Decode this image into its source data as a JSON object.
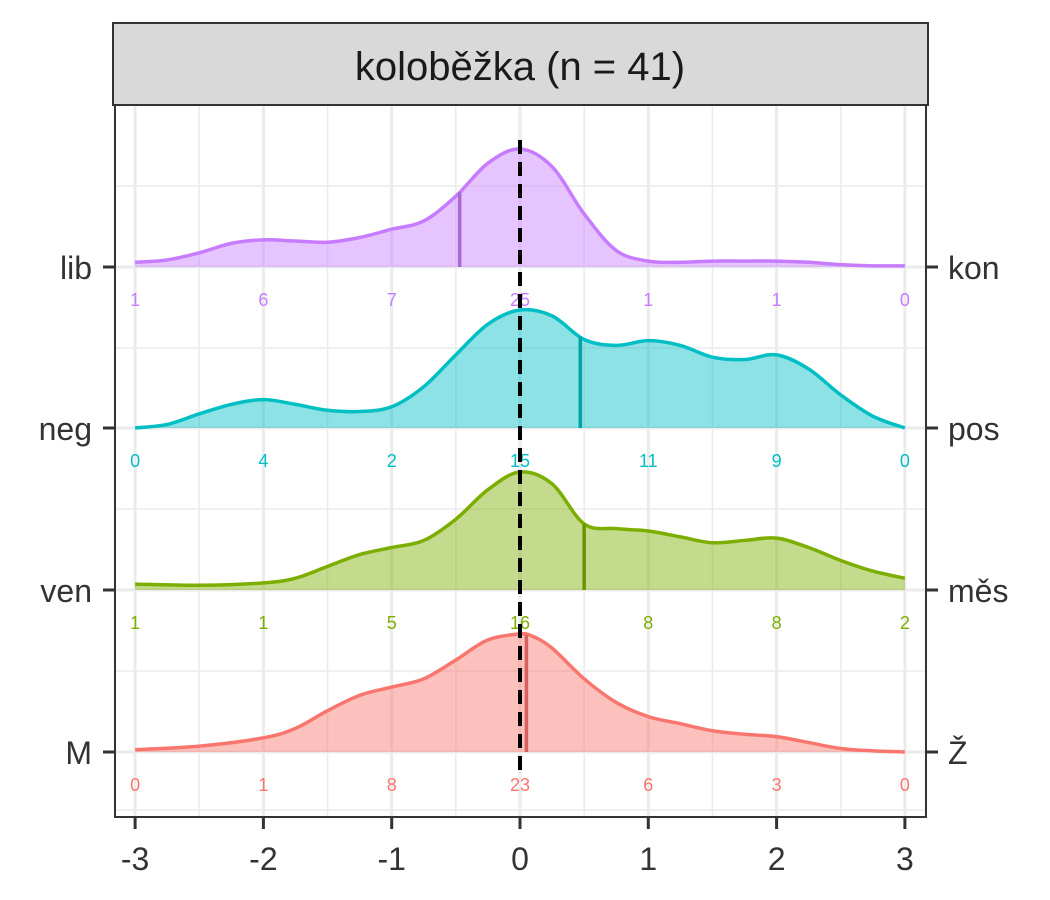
{
  "chart_data": {
    "type": "ridgeline",
    "title": "koloběžka (n = 41)",
    "xlim": [
      -3,
      3
    ],
    "x_ticks": [
      "-3",
      "-2",
      "-1",
      "0",
      "1",
      "2",
      "3"
    ],
    "x_tick_values": [
      -3,
      -2,
      -1,
      0,
      1,
      2,
      3
    ],
    "reference_line_x": 0,
    "grid": true,
    "series": [
      {
        "left_label": "M",
        "right_label": "Ž",
        "color": "#F8766D",
        "mean": 0.05,
        "x": [
          -3,
          -2.5,
          -2,
          -1.75,
          -1.5,
          -1.25,
          -1,
          -0.75,
          -0.5,
          -0.25,
          0,
          0.1,
          0.25,
          0.5,
          0.75,
          1,
          1.25,
          1.5,
          1.75,
          2,
          2.25,
          2.5,
          2.75,
          3
        ],
        "density": [
          0.02,
          0.05,
          0.12,
          0.2,
          0.35,
          0.48,
          0.55,
          0.62,
          0.78,
          0.95,
          1,
          0.98,
          0.88,
          0.62,
          0.42,
          0.3,
          0.24,
          0.18,
          0.15,
          0.13,
          0.08,
          0.03,
          0.01,
          0
        ],
        "counts": [
          {
            "x": -3,
            "label": "0"
          },
          {
            "x": -2,
            "label": "1"
          },
          {
            "x": -1,
            "label": "8"
          },
          {
            "x": 0,
            "label": "23"
          },
          {
            "x": 1,
            "label": "6"
          },
          {
            "x": 2,
            "label": "3"
          },
          {
            "x": 3,
            "label": "0"
          }
        ]
      },
      {
        "left_label": "ven",
        "right_label": "měs",
        "color": "#7CAE00",
        "mean": 0.5,
        "x": [
          -3,
          -2.5,
          -2,
          -1.75,
          -1.5,
          -1.25,
          -1,
          -0.75,
          -0.5,
          -0.25,
          0,
          0.25,
          0.5,
          0.75,
          1,
          1.25,
          1.5,
          1.75,
          2,
          2.25,
          2.5,
          2.75,
          3
        ],
        "density": [
          0.05,
          0.04,
          0.06,
          0.1,
          0.2,
          0.3,
          0.36,
          0.42,
          0.6,
          0.85,
          1,
          0.9,
          0.56,
          0.52,
          0.5,
          0.45,
          0.4,
          0.42,
          0.44,
          0.36,
          0.25,
          0.16,
          0.1
        ],
        "counts": [
          {
            "x": -3,
            "label": "1"
          },
          {
            "x": -2,
            "label": "1"
          },
          {
            "x": -1,
            "label": "5"
          },
          {
            "x": 0,
            "label": "16"
          },
          {
            "x": 1,
            "label": "8"
          },
          {
            "x": 2,
            "label": "8"
          },
          {
            "x": 3,
            "label": "2"
          }
        ]
      },
      {
        "left_label": "neg",
        "right_label": "pos",
        "color": "#00BFC4",
        "mean": 0.47,
        "x": [
          -3,
          -2.75,
          -2.5,
          -2.25,
          -2,
          -1.75,
          -1.5,
          -1.25,
          -1,
          -0.75,
          -0.5,
          -0.25,
          0,
          0.25,
          0.5,
          0.75,
          1,
          1.25,
          1.5,
          1.75,
          2,
          2.25,
          2.5,
          2.75,
          3
        ],
        "density": [
          0,
          0.03,
          0.12,
          0.2,
          0.24,
          0.2,
          0.15,
          0.14,
          0.18,
          0.35,
          0.62,
          0.88,
          1,
          0.95,
          0.75,
          0.7,
          0.74,
          0.7,
          0.6,
          0.58,
          0.62,
          0.5,
          0.28,
          0.1,
          0
        ],
        "counts": [
          {
            "x": -3,
            "label": "0"
          },
          {
            "x": -2,
            "label": "4"
          },
          {
            "x": -1,
            "label": "2"
          },
          {
            "x": 0,
            "label": "15"
          },
          {
            "x": 1,
            "label": "11"
          },
          {
            "x": 2,
            "label": "9"
          },
          {
            "x": 3,
            "label": "0"
          }
        ]
      },
      {
        "left_label": "lib",
        "right_label": "kon",
        "color": "#C77CFF",
        "mean": -0.47,
        "x": [
          -3,
          -2.75,
          -2.5,
          -2.25,
          -2,
          -1.75,
          -1.5,
          -1.25,
          -1,
          -0.75,
          -0.5,
          -0.25,
          0,
          0.25,
          0.5,
          0.75,
          1,
          1.25,
          1.5,
          1.75,
          2,
          2.25,
          2.5,
          2.75,
          3
        ],
        "density": [
          0.04,
          0.06,
          0.12,
          0.2,
          0.23,
          0.22,
          0.21,
          0.25,
          0.32,
          0.39,
          0.6,
          0.88,
          1,
          0.85,
          0.45,
          0.14,
          0.05,
          0.04,
          0.05,
          0.05,
          0.05,
          0.04,
          0.02,
          0.01,
          0.01
        ],
        "counts": [
          {
            "x": -3,
            "label": "1"
          },
          {
            "x": -2,
            "label": "6"
          },
          {
            "x": -1,
            "label": "7"
          },
          {
            "x": 0,
            "label": "25"
          },
          {
            "x": 1,
            "label": "1"
          },
          {
            "x": 2,
            "label": "1"
          },
          {
            "x": 3,
            "label": "0"
          }
        ]
      }
    ]
  }
}
